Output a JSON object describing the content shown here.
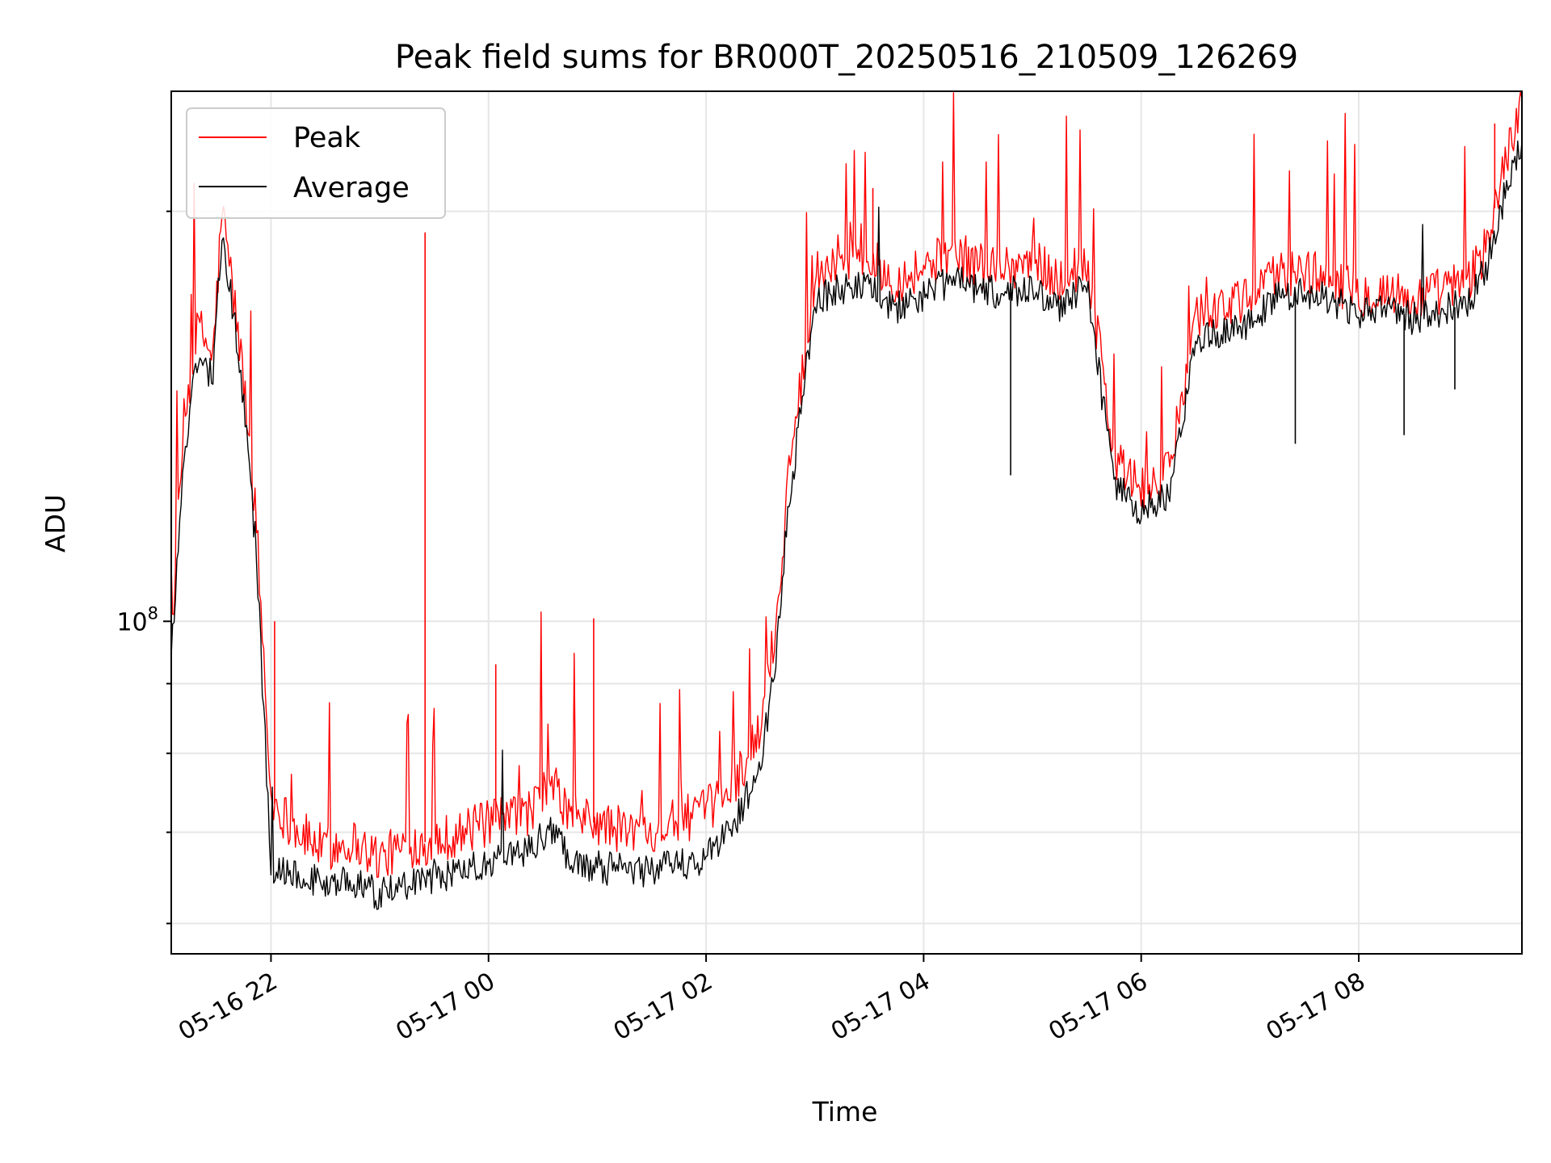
{
  "chart_data": {
    "type": "line",
    "title": "Peak field sums for BR000T_20250516_210509_126269",
    "xlabel": "Time",
    "ylabel": "ADU",
    "y_scale": "log",
    "grid": true,
    "legend_position": "top-left",
    "xlim": [
      "05-16 21:05",
      "05-17 09:30"
    ],
    "ylim": [
      57000000,
      245000000
    ],
    "x_ticks": [
      "05-16 22",
      "05-17 00",
      "05-17 02",
      "05-17 04",
      "05-17 06",
      "05-17 08"
    ],
    "y_ticks": [
      "10^8"
    ],
    "x": [
      "05-16 21:05",
      "05-16 21:12",
      "05-16 21:20",
      "05-16 21:28",
      "05-16 21:33",
      "05-16 21:37",
      "05-16 21:45",
      "05-16 21:52",
      "05-16 22:00",
      "05-16 22:15",
      "05-16 22:30",
      "05-16 22:45",
      "05-16 23:00",
      "05-16 23:15",
      "05-16 23:30",
      "05-16 23:45",
      "05-17 00:00",
      "05-17 00:20",
      "05-17 00:35",
      "05-17 00:45",
      "05-17 01:00",
      "05-17 01:20",
      "05-17 01:40",
      "05-17 02:00",
      "05-17 02:15",
      "05-17 02:30",
      "05-17 02:40",
      "05-17 02:45",
      "05-17 02:50",
      "05-17 03:00",
      "05-17 03:15",
      "05-17 03:30",
      "05-17 03:45",
      "05-17 04:00",
      "05-17 04:15",
      "05-17 04:30",
      "05-17 04:45",
      "05-17 05:00",
      "05-17 05:15",
      "05-17 05:30",
      "05-17 05:45",
      "05-17 06:00",
      "05-17 06:15",
      "05-17 06:30",
      "05-17 06:45",
      "05-17 07:00",
      "05-17 07:15",
      "05-17 07:30",
      "05-17 07:45",
      "05-17 08:00",
      "05-17 08:15",
      "05-17 08:30",
      "05-17 08:45",
      "05-17 09:00",
      "05-17 09:10",
      "05-17 09:20",
      "05-17 09:30"
    ],
    "series": [
      {
        "name": "Peak",
        "color": "#ff0000",
        "values": [
          96000000,
          140000000,
          165000000,
          156000000,
          200000000,
          184000000,
          150000000,
          118000000,
          74000000,
          70000000,
          68000000,
          69000000,
          67000000,
          68500000,
          69000000,
          70000000,
          71000000,
          72000000,
          76000000,
          72000000,
          71000000,
          70000000,
          71000000,
          72500000,
          76000000,
          83000000,
          103000000,
          127000000,
          142000000,
          180000000,
          186000000,
          184000000,
          178000000,
          182000000,
          186000000,
          183000000,
          182000000,
          184000000,
          178000000,
          184000000,
          132000000,
          125000000,
          128000000,
          168000000,
          170000000,
          172000000,
          180000000,
          181000000,
          178000000,
          174000000,
          175000000,
          172000000,
          175000000,
          177000000,
          188000000,
          215000000,
          242000000
        ]
      },
      {
        "name": "Average",
        "color": "#000000",
        "values": [
          94000000,
          132000000,
          158000000,
          150000000,
          195000000,
          178000000,
          145000000,
          112000000,
          66000000,
          65500000,
          64000000,
          64500000,
          63000000,
          64000000,
          65000000,
          65500000,
          66500000,
          67500000,
          70500000,
          67000000,
          66000000,
          65500000,
          66000000,
          67000000,
          71000000,
          78000000,
          98000000,
          120000000,
          135000000,
          172000000,
          176000000,
          175000000,
          170000000,
          174000000,
          178000000,
          175000000,
          174000000,
          176000000,
          170000000,
          176000000,
          127000000,
          120000000,
          124000000,
          160000000,
          164000000,
          166000000,
          173000000,
          175000000,
          172000000,
          168000000,
          170000000,
          167000000,
          169000000,
          171000000,
          181000000,
          205000000,
          225000000
        ]
      }
    ],
    "spikes": [
      {
        "series": "Peak",
        "x": "05-16 23:25",
        "value": 193000000
      },
      {
        "series": "Peak",
        "x": "05-17 03:32",
        "value": 208000000
      },
      {
        "series": "Peak",
        "x": "05-16 22:02",
        "value": 100000000
      },
      {
        "series": "Peak",
        "x": "05-17 00:04",
        "value": 93000000
      },
      {
        "series": "Peak",
        "x": "05-17 00:58",
        "value": 100500000
      },
      {
        "series": "Peak",
        "x": "05-17 09:15",
        "value": 232000000
      },
      {
        "series": "Average",
        "x": "05-17 04:48",
        "value": 128000000
      },
      {
        "series": "Average",
        "x": "05-17 07:25",
        "value": 135000000
      },
      {
        "series": "Average",
        "x": "05-17 08:25",
        "value": 137000000
      },
      {
        "series": "Average",
        "x": "05-17 08:53",
        "value": 148000000
      }
    ],
    "legend": [
      "Peak",
      "Average"
    ]
  }
}
